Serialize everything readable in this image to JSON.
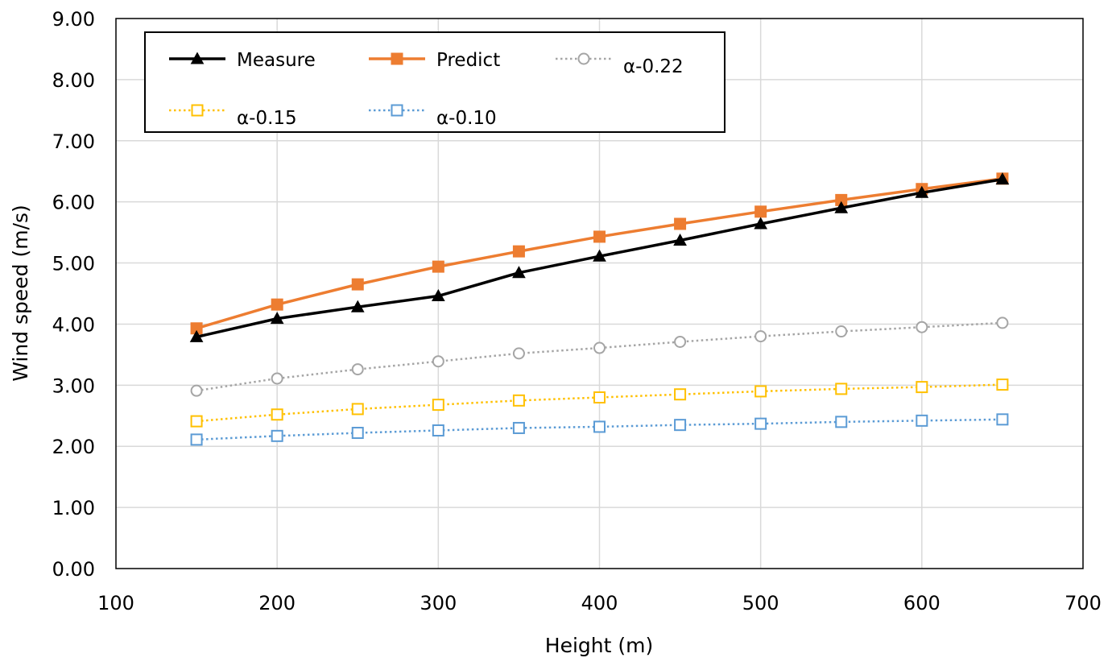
{
  "chart_data": {
    "type": "line",
    "title": "",
    "xlabel": "Height (m)",
    "ylabel": "Wind speed (m/s)",
    "xlim": [
      100,
      700
    ],
    "ylim": [
      0,
      9
    ],
    "x_ticks": [
      "100",
      "200",
      "300",
      "400",
      "500",
      "600",
      "700"
    ],
    "y_ticks": [
      "0.00",
      "1.00",
      "2.00",
      "3.00",
      "4.00",
      "5.00",
      "6.00",
      "7.00",
      "8.00",
      "9.00"
    ],
    "grid": true,
    "legend_position": "top-left",
    "x": [
      150,
      200,
      250,
      300,
      350,
      400,
      450,
      500,
      550,
      600,
      650
    ],
    "series": [
      {
        "name": "Measure",
        "color": "#000000",
        "style": "solid",
        "marker": "triangle-filled",
        "values": [
          3.79,
          4.09,
          4.28,
          4.46,
          4.84,
          5.11,
          5.37,
          5.64,
          5.9,
          6.15,
          6.37
        ]
      },
      {
        "name": "Predict",
        "color": "#ED7D31",
        "style": "solid",
        "marker": "square-filled",
        "values": [
          3.93,
          4.32,
          4.65,
          4.94,
          5.19,
          5.43,
          5.64,
          5.84,
          6.03,
          6.21,
          6.38
        ]
      },
      {
        "name": "α-0.22",
        "color": "#A5A5A5",
        "style": "dotted",
        "marker": "circle-open",
        "values": [
          2.91,
          3.11,
          3.26,
          3.39,
          3.52,
          3.61,
          3.71,
          3.8,
          3.88,
          3.95,
          4.02
        ]
      },
      {
        "name": "α-0.15",
        "color": "#FFC000",
        "style": "dotted",
        "marker": "square-open",
        "values": [
          2.41,
          2.52,
          2.61,
          2.68,
          2.75,
          2.8,
          2.85,
          2.9,
          2.94,
          2.97,
          3.01
        ]
      },
      {
        "name": "α-0.10",
        "color": "#5B9BD5",
        "style": "dotted",
        "marker": "square-open",
        "values": [
          2.11,
          2.17,
          2.22,
          2.26,
          2.3,
          2.32,
          2.35,
          2.37,
          2.4,
          2.42,
          2.44
        ]
      }
    ]
  }
}
